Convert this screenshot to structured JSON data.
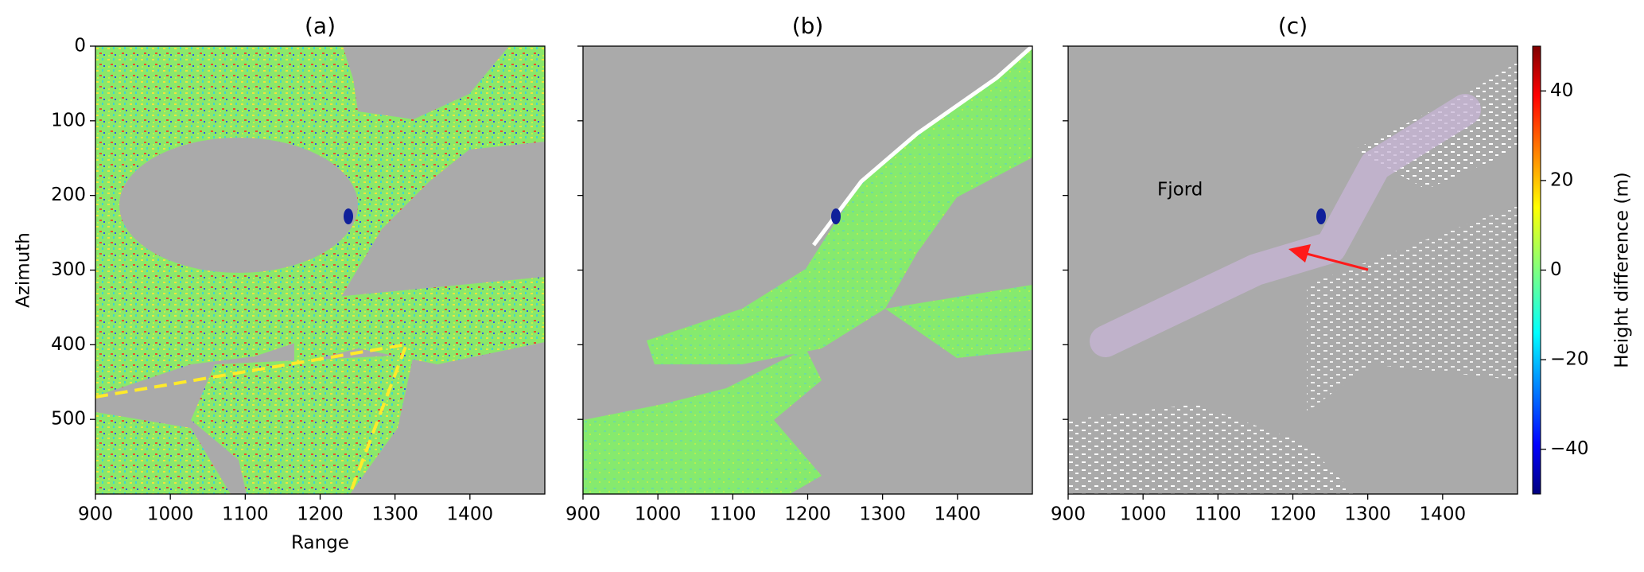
{
  "chart_data": [
    {
      "type": "image",
      "title": "(a)",
      "xlabel": "Range",
      "ylabel": "Azimuth",
      "xlim": [
        900,
        1500
      ],
      "xticks": [
        900,
        1000,
        1100,
        1200,
        1300,
        1400
      ],
      "ylim": [
        600,
        0
      ],
      "yticks": [
        0,
        100,
        200,
        300,
        400,
        500
      ]
    },
    {
      "type": "image",
      "title": "(b)",
      "xlim": [
        900,
        1500
      ],
      "xticks": [
        900,
        1000,
        1100,
        1200,
        1300,
        1400
      ],
      "ylim": [
        600,
        0
      ],
      "yticks": [
        0,
        100,
        200,
        300,
        400,
        500
      ]
    },
    {
      "type": "image",
      "title": "(c)",
      "xlim": [
        900,
        1500
      ],
      "xticks": [
        900,
        1000,
        1100,
        1200,
        1300,
        1400
      ],
      "ylim": [
        600,
        0
      ],
      "yticks": [
        0,
        100,
        200,
        300,
        400,
        500
      ],
      "annotations": [
        {
          "text": "Fjord"
        }
      ],
      "colorbar": {
        "label": "Height difference (m)",
        "colormap": "jet",
        "lim": [
          -50,
          50
        ],
        "ticks": [
          {
            "value": -40,
            "label": "−40"
          },
          {
            "value": -20,
            "label": "−20"
          },
          0,
          20,
          40
        ]
      }
    }
  ]
}
